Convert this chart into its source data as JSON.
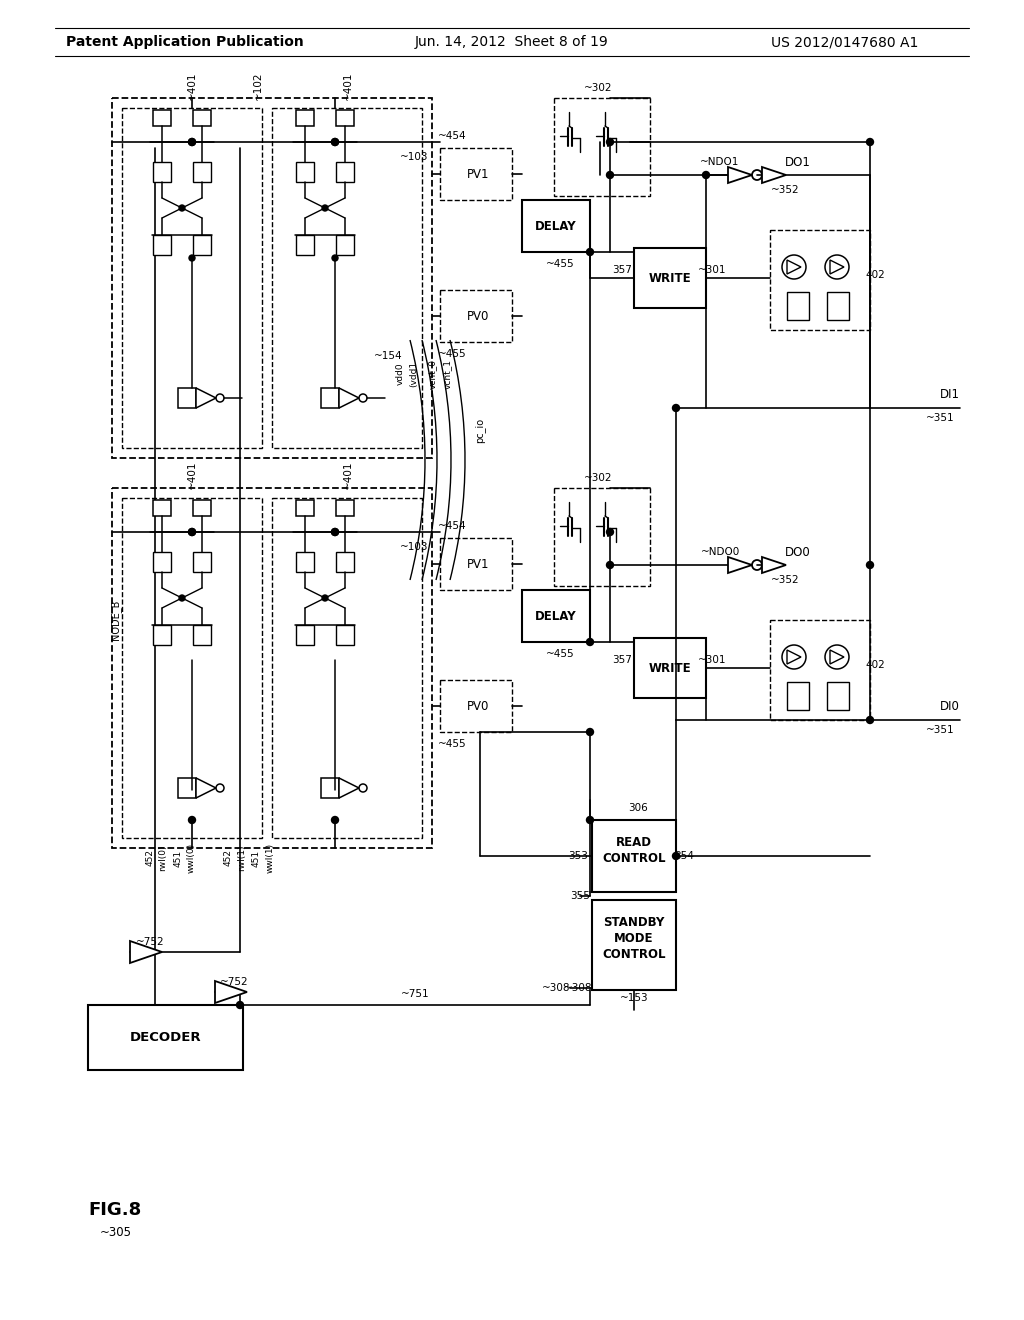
{
  "bg": "#ffffff",
  "header_left": "Patent Application Publication",
  "header_mid": "Jun. 14, 2012  Sheet 8 of 19",
  "header_right": "US 2012/0147680 A1",
  "fig_label": "FIG.8",
  "fig_ref": "305"
}
